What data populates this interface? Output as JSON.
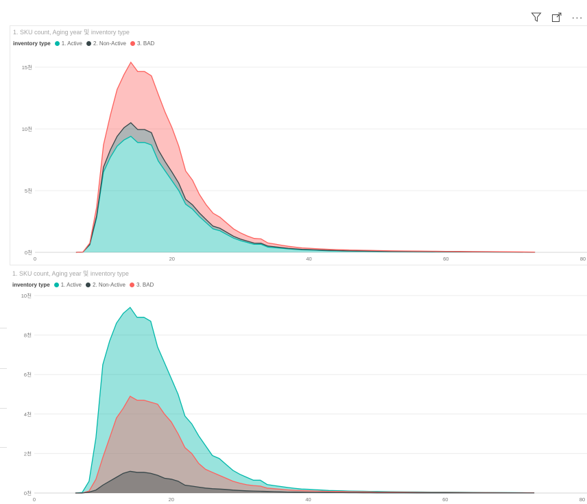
{
  "toolbar": {
    "filter_icon": "filter-icon",
    "focus_icon": "focus-mode-icon",
    "more_icon": "more-options-icon",
    "more_label": "···"
  },
  "chart_data": [
    {
      "type": "area",
      "stacked": true,
      "title": "1. SKU count, Aging year 및 inventory type",
      "legend_title": "inventory type",
      "legend_position": "top-left",
      "x_ticks": [
        "0",
        "20",
        "40",
        "60",
        "80"
      ],
      "y_ticks": [
        "0천",
        "5천",
        "10천",
        "15천"
      ],
      "xlim": [
        0,
        80
      ],
      "ylim": [
        0,
        15000
      ],
      "grid": true,
      "x": [
        6,
        7,
        8,
        9,
        10,
        11,
        12,
        13,
        14,
        15,
        16,
        17,
        18,
        19,
        20,
        21,
        22,
        23,
        24,
        25,
        26,
        27,
        28,
        29,
        30,
        31,
        32,
        33,
        34,
        35,
        36,
        37,
        38,
        39,
        40,
        41,
        42,
        43,
        44,
        45,
        46,
        47,
        48,
        49,
        50,
        52,
        54,
        56,
        58,
        60,
        62,
        64,
        66,
        68,
        70,
        72,
        73
      ],
      "series": [
        {
          "name": "1. Active",
          "color": "#01B8AA",
          "values": [
            0,
            30,
            600,
            2800,
            6500,
            7700,
            8600,
            9100,
            9400,
            8900,
            8900,
            8700,
            7400,
            6600,
            5800,
            5000,
            3900,
            3500,
            2900,
            2400,
            1900,
            1750,
            1450,
            1150,
            950,
            800,
            650,
            650,
            430,
            380,
            330,
            280,
            240,
            200,
            190,
            170,
            150,
            130,
            120,
            110,
            100,
            95,
            90,
            85,
            80,
            70,
            60,
            55,
            50,
            45,
            40,
            35,
            30,
            25,
            20,
            15,
            10
          ]
        },
        {
          "name": "2. Non-Active",
          "color": "#374649",
          "values": [
            0,
            0,
            50,
            150,
            400,
            600,
            800,
            1000,
            1100,
            1050,
            1050,
            1000,
            900,
            750,
            700,
            600,
            400,
            350,
            300,
            250,
            220,
            200,
            180,
            150,
            130,
            110,
            100,
            90,
            80,
            70,
            60,
            50,
            45,
            40,
            35,
            30,
            28,
            25,
            22,
            20,
            18,
            16,
            15,
            14,
            12,
            10,
            10,
            8,
            8,
            6,
            5,
            5,
            4,
            4,
            3,
            2,
            2
          ]
        },
        {
          "name": "3. BAD",
          "color": "#FD625E",
          "values": [
            0,
            0,
            100,
            700,
            1800,
            2800,
            3800,
            4300,
            4900,
            4700,
            4700,
            4600,
            4500,
            4000,
            3600,
            3000,
            2300,
            2000,
            1500,
            1200,
            1050,
            900,
            750,
            600,
            500,
            420,
            380,
            350,
            250,
            220,
            190,
            160,
            140,
            120,
            110,
            100,
            90,
            85,
            80,
            75,
            70,
            65,
            60,
            55,
            50,
            45,
            40,
            35,
            30,
            28,
            25,
            22,
            20,
            18,
            15,
            12,
            10
          ]
        }
      ]
    },
    {
      "type": "area",
      "stacked": false,
      "title": "1. SKU count, Aging year 및 inventory type",
      "legend_title": "inventory type",
      "legend_position": "top-left",
      "x_ticks": [
        "0",
        "20",
        "40",
        "60",
        "80"
      ],
      "y_ticks": [
        "0천",
        "2천",
        "4천",
        "6천",
        "8천",
        "10천"
      ],
      "xlim": [
        0,
        80
      ],
      "ylim": [
        0,
        10000
      ],
      "grid": true,
      "x": [
        6,
        7,
        8,
        9,
        10,
        11,
        12,
        13,
        14,
        15,
        16,
        17,
        18,
        19,
        20,
        21,
        22,
        23,
        24,
        25,
        26,
        27,
        28,
        29,
        30,
        31,
        32,
        33,
        34,
        35,
        36,
        37,
        38,
        39,
        40,
        41,
        42,
        43,
        44,
        45,
        46,
        47,
        48,
        49,
        50,
        52,
        54,
        56,
        58,
        60,
        62,
        64,
        66,
        68,
        70,
        72,
        73
      ],
      "series": [
        {
          "name": "1. Active",
          "color": "#01B8AA",
          "values": [
            0,
            30,
            600,
            2800,
            6500,
            7700,
            8600,
            9100,
            9400,
            8900,
            8900,
            8700,
            7400,
            6600,
            5800,
            5000,
            3900,
            3500,
            2900,
            2400,
            1900,
            1750,
            1450,
            1150,
            950,
            800,
            650,
            650,
            430,
            380,
            330,
            280,
            240,
            200,
            190,
            170,
            150,
            130,
            120,
            110,
            100,
            95,
            90,
            85,
            80,
            70,
            60,
            55,
            50,
            45,
            40,
            35,
            30,
            25,
            20,
            15,
            10
          ]
        },
        {
          "name": "3. BAD",
          "color": "#FD625E",
          "values": [
            0,
            0,
            100,
            700,
            1800,
            2800,
            3800,
            4300,
            4900,
            4700,
            4700,
            4600,
            4500,
            4000,
            3600,
            3000,
            2300,
            2000,
            1500,
            1200,
            1050,
            900,
            750,
            600,
            500,
            420,
            380,
            350,
            250,
            220,
            190,
            160,
            140,
            120,
            110,
            100,
            90,
            85,
            80,
            75,
            70,
            65,
            60,
            55,
            50,
            45,
            40,
            35,
            30,
            28,
            25,
            22,
            20,
            18,
            15,
            12,
            10
          ]
        },
        {
          "name": "2. Non-Active",
          "color": "#374649",
          "values": [
            0,
            0,
            50,
            150,
            400,
            600,
            800,
            1000,
            1100,
            1050,
            1050,
            1000,
            900,
            750,
            700,
            600,
            400,
            350,
            300,
            250,
            220,
            200,
            180,
            150,
            130,
            110,
            100,
            90,
            80,
            70,
            60,
            50,
            45,
            40,
            35,
            30,
            28,
            25,
            22,
            20,
            18,
            16,
            15,
            14,
            12,
            10,
            10,
            8,
            8,
            6,
            5,
            5,
            4,
            4,
            3,
            2,
            2
          ]
        }
      ]
    }
  ]
}
